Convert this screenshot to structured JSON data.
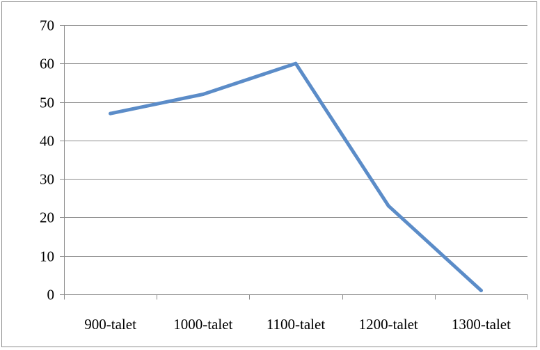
{
  "chart_data": {
    "type": "line",
    "title": "",
    "xlabel": "",
    "ylabel": "",
    "categories": [
      "900-talet",
      "1000-talet",
      "1100-talet",
      "1200-talet",
      "1300-talet"
    ],
    "series": [
      {
        "values": [
          47,
          52,
          60,
          23,
          1
        ],
        "color": "#5b8cc8"
      }
    ],
    "ylim": [
      0,
      70
    ],
    "yticks": [
      0,
      10,
      20,
      30,
      40,
      50,
      60,
      70
    ],
    "grid": true,
    "legend": "none"
  }
}
